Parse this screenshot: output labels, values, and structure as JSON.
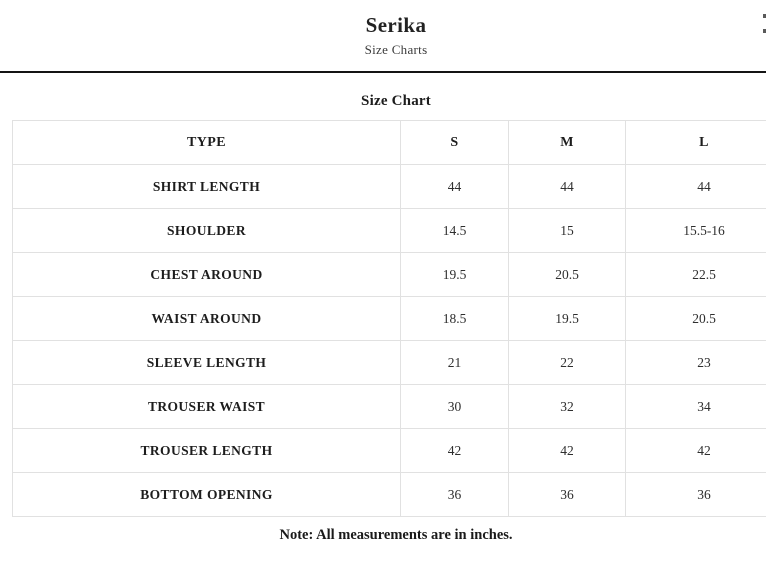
{
  "page": {
    "title": "Serika",
    "subtitle": "Size Charts",
    "section_heading": "Size Chart",
    "note": "Note: All measurements are in inches."
  },
  "table": {
    "columns": [
      "TYPE",
      "S",
      "M",
      "L"
    ],
    "rows": [
      {
        "type": "SHIRT LENGTH",
        "s": "44",
        "m": "44",
        "l": "44"
      },
      {
        "type": "SHOULDER",
        "s": "14.5",
        "m": "15",
        "l": "15.5-16"
      },
      {
        "type": "CHEST AROUND",
        "s": "19.5",
        "m": "20.5",
        "l": "22.5"
      },
      {
        "type": "WAIST AROUND",
        "s": "18.5",
        "m": "19.5",
        "l": "20.5"
      },
      {
        "type": "SLEEVE LENGTH",
        "s": "21",
        "m": "22",
        "l": "23"
      },
      {
        "type": "TROUSER WAIST",
        "s": "30",
        "m": "32",
        "l": "34"
      },
      {
        "type": "TROUSER LENGTH",
        "s": "42",
        "m": "42",
        "l": "42"
      },
      {
        "type": "BOTTOM OPENING",
        "s": "36",
        "m": "36",
        "l": "36"
      }
    ]
  },
  "colors": {
    "text": "#1f1f1f",
    "border": "#e1e1e1",
    "divider": "#141414",
    "background": "#ffffff"
  }
}
